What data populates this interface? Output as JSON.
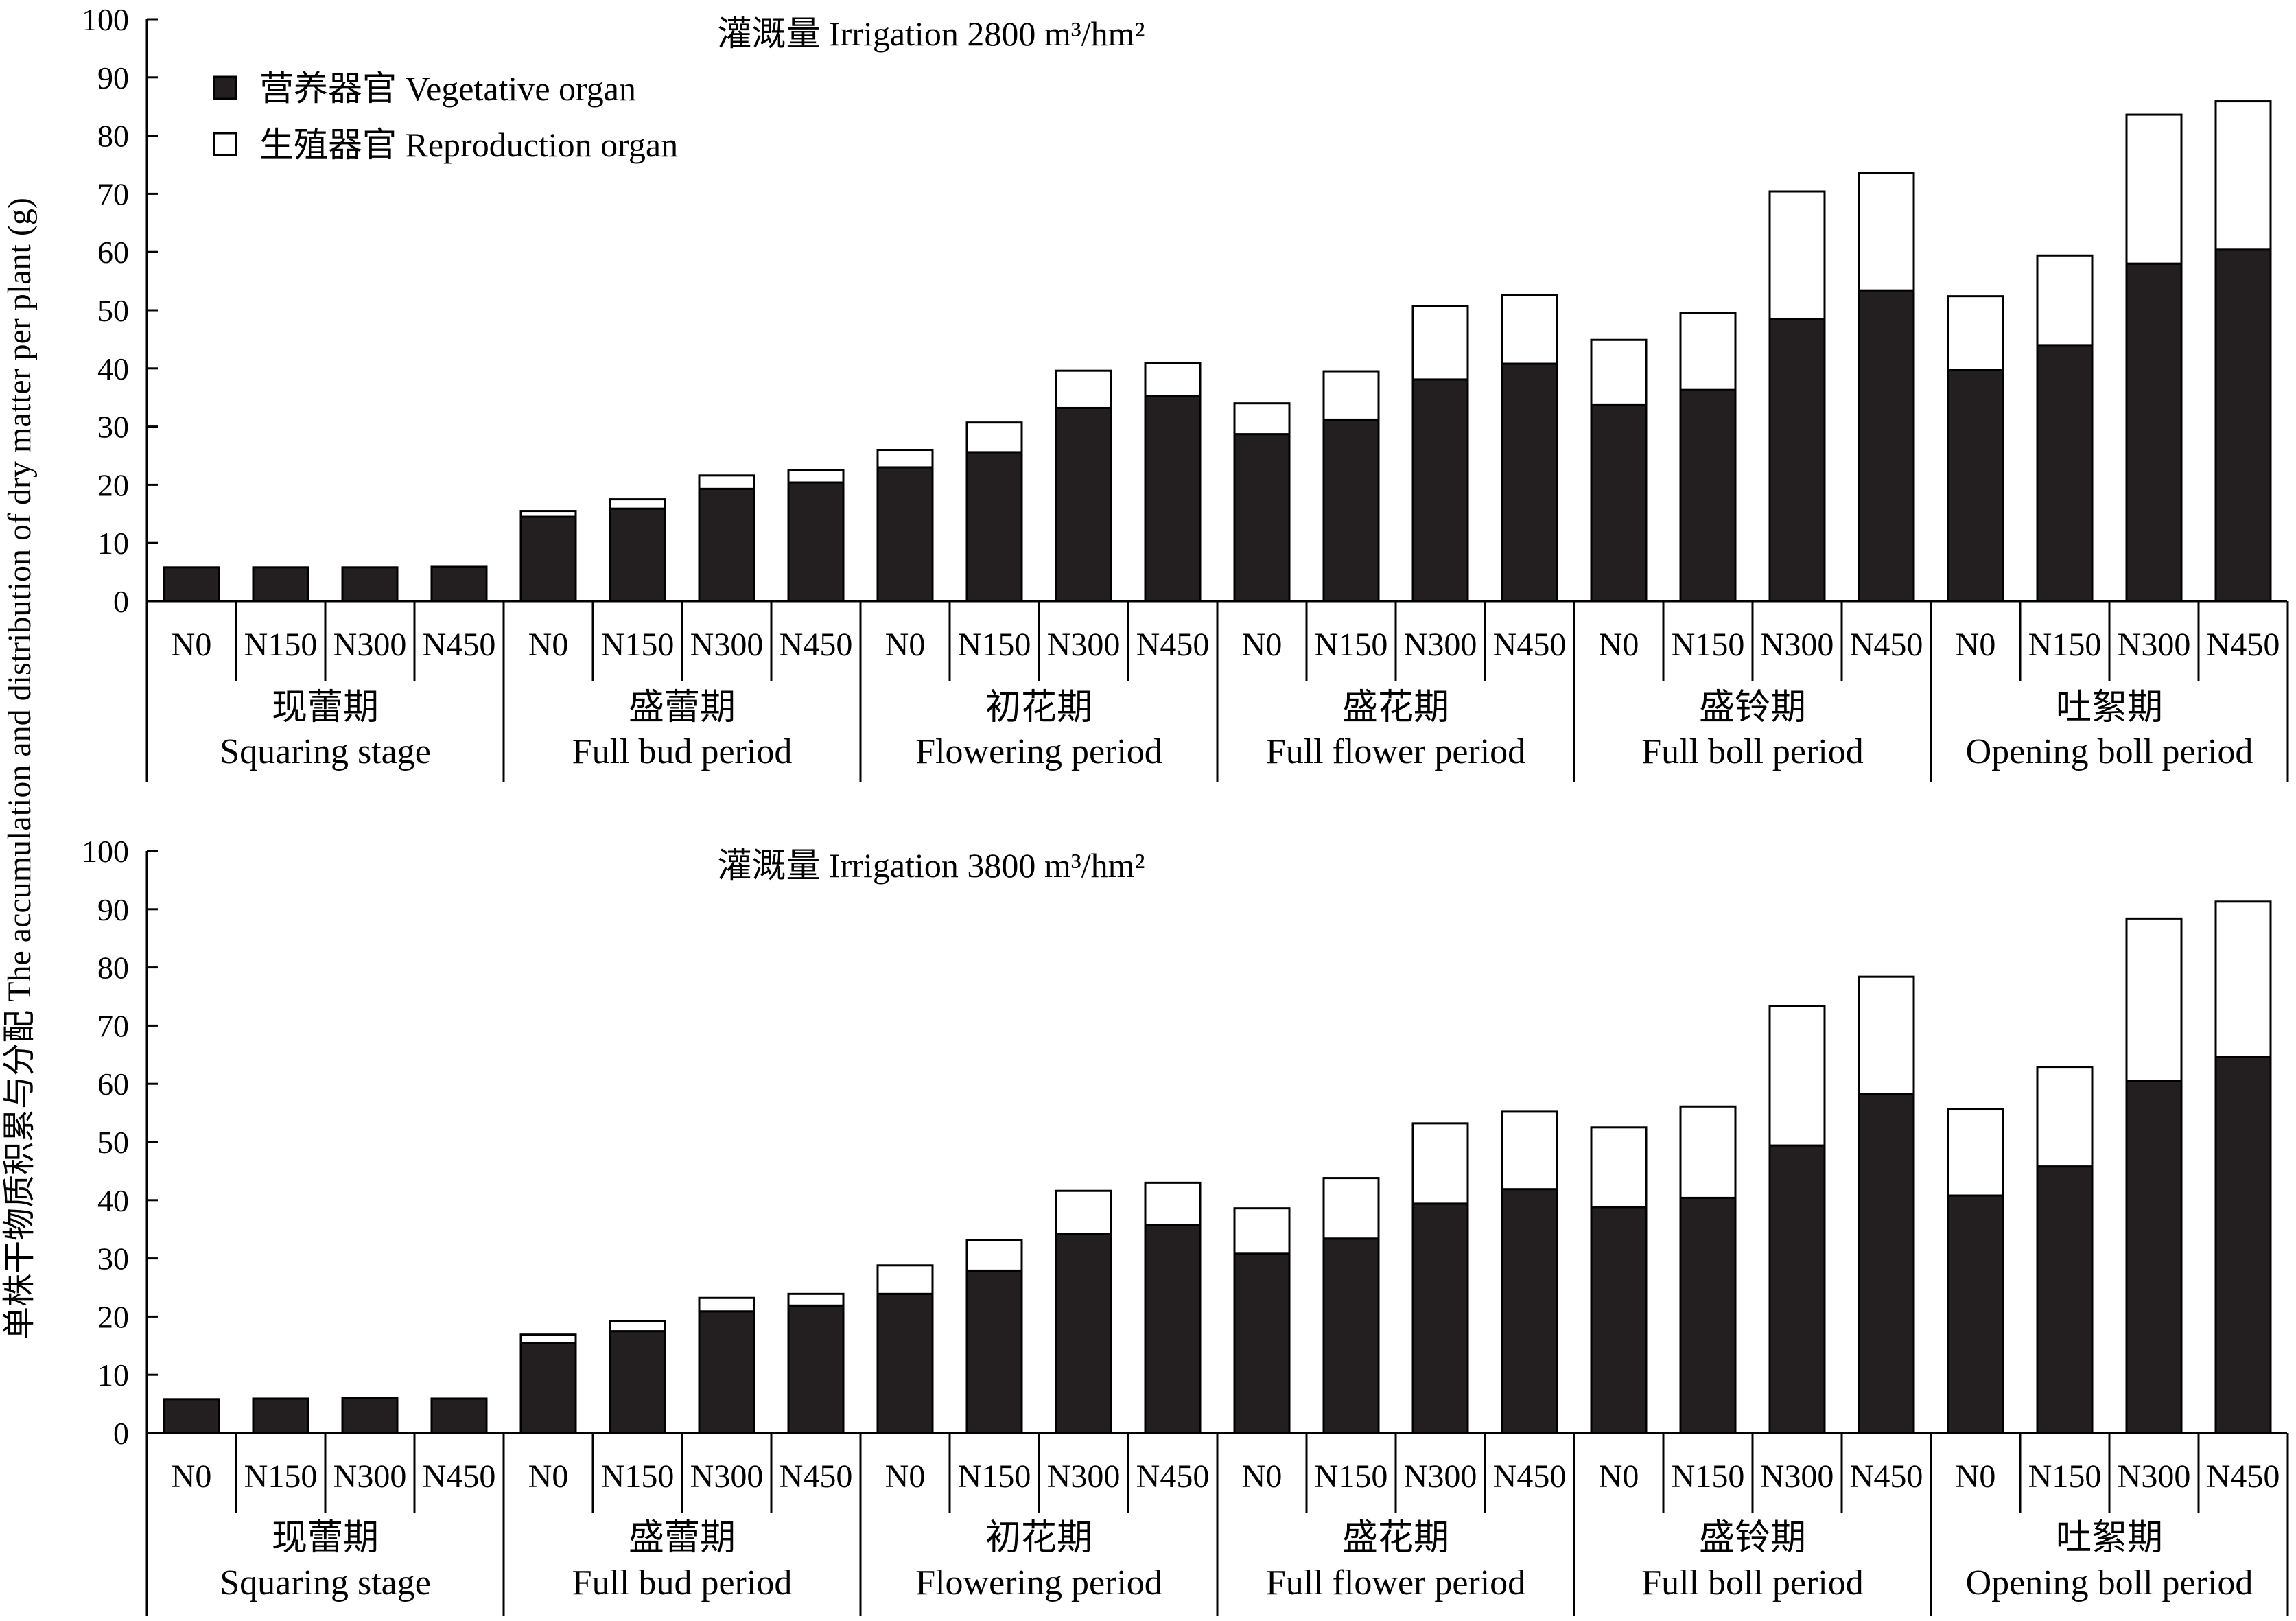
{
  "figure": {
    "ylabel": "单株干物质积累与分配 The accumulation and distribution of dry matter per plant (g)"
  },
  "legend": [
    {
      "label": "营养器官 Vegetative organ",
      "color": "#231f20"
    },
    {
      "label": "生殖器官 Reproduction organ",
      "color": "#ffffff"
    }
  ],
  "chart_data": [
    {
      "type": "bar",
      "stacked": true,
      "title": "灌溉量 Irrigation 2800 m³/hm²",
      "ylim": [
        0,
        100
      ],
      "yticks": [
        0,
        10,
        20,
        30,
        40,
        50,
        60,
        70,
        80,
        90,
        100
      ],
      "groups": [
        {
          "zh": "现蕾期",
          "en": "Squaring stage"
        },
        {
          "zh": "盛蕾期",
          "en": "Full bud period"
        },
        {
          "zh": "初花期",
          "en": "Flowering period"
        },
        {
          "zh": "盛花期",
          "en": "Full flower period"
        },
        {
          "zh": "盛铃期",
          "en": "Full boll period"
        },
        {
          "zh": "吐絮期",
          "en": "Opening boll period"
        }
      ],
      "treatments": [
        "N0",
        "N150",
        "N300",
        "N450"
      ],
      "series": [
        {
          "name": "营养器官 Vegetative organ",
          "values": [
            [
              5.8,
              5.8,
              5.8,
              5.9
            ],
            [
              14.5,
              15.9,
              19.3,
              20.4
            ],
            [
              23.0,
              25.6,
              33.2,
              35.2
            ],
            [
              28.7,
              31.2,
              38.1,
              40.8
            ],
            [
              33.8,
              36.3,
              48.5,
              53.4
            ],
            [
              39.7,
              44.0,
              58.0,
              60.4
            ]
          ]
        },
        {
          "name": "生殖器官 Reproduction organ",
          "values": [
            [
              0,
              0,
              0,
              0
            ],
            [
              1.0,
              1.6,
              2.3,
              2.1
            ],
            [
              3.0,
              5.1,
              6.4,
              5.7
            ],
            [
              5.3,
              8.3,
              12.6,
              11.8
            ],
            [
              11.1,
              13.2,
              21.9,
              20.2
            ],
            [
              12.7,
              15.4,
              25.6,
              25.5
            ]
          ]
        }
      ]
    },
    {
      "type": "bar",
      "stacked": true,
      "title": "灌溉量 Irrigation 3800 m³/hm²",
      "ylim": [
        0,
        100
      ],
      "yticks": [
        0,
        10,
        20,
        30,
        40,
        50,
        60,
        70,
        80,
        90,
        100
      ],
      "groups": [
        {
          "zh": "现蕾期",
          "en": "Squaring stage"
        },
        {
          "zh": "盛蕾期",
          "en": "Full bud period"
        },
        {
          "zh": "初花期",
          "en": "Flowering period"
        },
        {
          "zh": "盛花期",
          "en": "Full flower period"
        },
        {
          "zh": "盛铃期",
          "en": "Full boll period"
        },
        {
          "zh": "吐絮期",
          "en": "Opening boll period"
        }
      ],
      "treatments": [
        "N0",
        "N150",
        "N300",
        "N450"
      ],
      "series": [
        {
          "name": "营养器官 Vegetative organ",
          "values": [
            [
              5.8,
              5.9,
              6.0,
              5.9
            ],
            [
              15.4,
              17.5,
              20.9,
              21.9
            ],
            [
              23.9,
              27.9,
              34.2,
              35.7
            ],
            [
              30.8,
              33.4,
              39.4,
              41.9
            ],
            [
              38.8,
              40.4,
              49.4,
              58.3
            ],
            [
              40.8,
              45.8,
              60.5,
              64.6
            ]
          ]
        },
        {
          "name": "生殖器官 Reproduction organ",
          "values": [
            [
              0,
              0,
              0,
              0
            ],
            [
              1.5,
              1.7,
              2.3,
              2.0
            ],
            [
              4.9,
              5.2,
              7.4,
              7.3
            ],
            [
              7.8,
              10.4,
              13.8,
              13.3
            ],
            [
              13.7,
              15.7,
              24.0,
              20.1
            ],
            [
              14.8,
              17.1,
              27.9,
              26.7
            ]
          ]
        }
      ]
    }
  ]
}
